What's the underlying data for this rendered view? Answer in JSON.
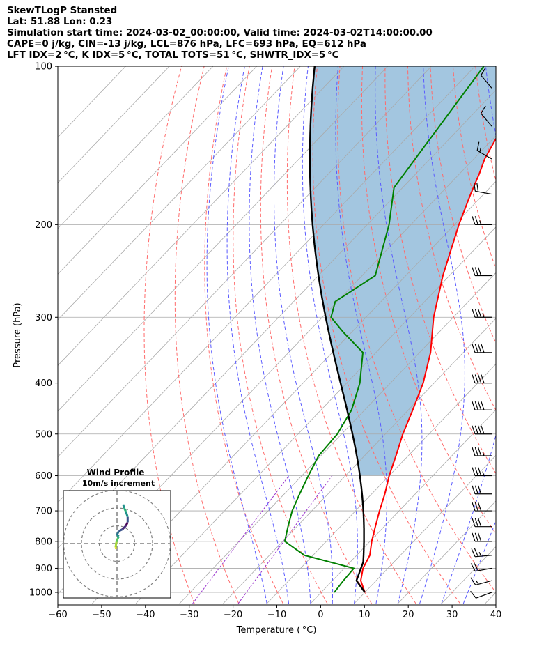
{
  "header": {
    "line1": "SkewTLogP Stansted",
    "line2": "Lat: 51.88   Lon: 0.23",
    "line3": "Simulation start time: 2024-03-02_00:00:00, Valid time: 2024-03-02T14:00:00.00",
    "line4": "CAPE=0 j/kg, CIN=-13 j/kg, LCL=876 hPa, LFC=693 hPa, EQ=612 hPa",
    "line5": "LFT IDX=2 °C, K IDX=5 °C, TOTAL TOTS=51 °C, SHWTR_IDX=5 °C"
  },
  "chart_data": {
    "type": "skewt",
    "xlabel": "Temperature ( °C)",
    "ylabel": "Pressure (hPa)",
    "xlim": [
      -60,
      40
    ],
    "ylim_hpa": [
      1050,
      100
    ],
    "x_ticks": [
      "−60",
      "−50",
      "−40",
      "−30",
      "−20",
      "−10",
      "0",
      "10",
      "20",
      "30",
      "40"
    ],
    "p_ticks": [
      "1000",
      "900",
      "800",
      "700",
      "600",
      "500",
      "400",
      "300",
      "200",
      "100"
    ],
    "temperature": [
      [
        1000,
        10
      ],
      [
        950,
        6.5
      ],
      [
        900,
        4.3
      ],
      [
        850,
        3.0
      ],
      [
        800,
        0.4
      ],
      [
        750,
        -2.0
      ],
      [
        700,
        -4.5
      ],
      [
        650,
        -7.0
      ],
      [
        600,
        -10.0
      ],
      [
        550,
        -12.8
      ],
      [
        500,
        -16.0
      ],
      [
        450,
        -19.0
      ],
      [
        400,
        -22.5
      ],
      [
        350,
        -27.5
      ],
      [
        300,
        -34.5
      ],
      [
        250,
        -41.5
      ],
      [
        200,
        -49.0
      ],
      [
        175,
        -53.0
      ],
      [
        160,
        -55.5
      ],
      [
        150,
        -57.5
      ],
      [
        130,
        -60.5
      ],
      [
        120,
        -62.5
      ],
      [
        100,
        -66.5
      ]
    ],
    "dewpoint": [
      [
        1000,
        3.0
      ],
      [
        950,
        2.5
      ],
      [
        900,
        2.2
      ],
      [
        850,
        -12.0
      ],
      [
        800,
        -19.5
      ],
      [
        750,
        -22.0
      ],
      [
        700,
        -24.5
      ],
      [
        650,
        -26.5
      ],
      [
        600,
        -28.5
      ],
      [
        550,
        -30.5
      ],
      [
        500,
        -31.0
      ],
      [
        450,
        -33.0
      ],
      [
        400,
        -37.0
      ],
      [
        350,
        -43.0
      ],
      [
        320,
        -52.0
      ],
      [
        300,
        -58.0
      ],
      [
        280,
        -60.5
      ],
      [
        250,
        -57.0
      ],
      [
        200,
        -65.0
      ],
      [
        170,
        -72.0
      ],
      [
        100,
        -78.0
      ]
    ],
    "parcel_start": [
      [
        1000,
        10
      ],
      [
        950,
        5.5
      ],
      [
        876,
        3.0
      ]
    ],
    "parcel_moist_from": [
      876,
      3.0
    ],
    "dry_adiabats_theta": [
      -30,
      -20,
      -10,
      0,
      10,
      20,
      30,
      40,
      50,
      60,
      70,
      80,
      90,
      100,
      110
    ],
    "moist_adiabats_t0": [
      -10,
      -5,
      0,
      5,
      10,
      15,
      20,
      25,
      30,
      35
    ],
    "isotherm_step": 10,
    "cape_fill_color": "#a3c6e0",
    "temp_color": "#ff0000",
    "dew_color": "#008000",
    "parcel_color": "#000000",
    "isotherm_color": "#a9a9a9",
    "dry_adiabat_color": "#ff6b6b",
    "moist_adiabat_color": "#5b5bff",
    "mixing_line_color": "#9932cc",
    "wind_barbs": [
      {
        "p": 1000,
        "spd": 10,
        "dir": 250
      },
      {
        "p": 950,
        "spd": 15,
        "dir": 255
      },
      {
        "p": 900,
        "spd": 20,
        "dir": 260
      },
      {
        "p": 850,
        "spd": 25,
        "dir": 265
      },
      {
        "p": 800,
        "spd": 30,
        "dir": 270
      },
      {
        "p": 750,
        "spd": 30,
        "dir": 270
      },
      {
        "p": 700,
        "spd": 30,
        "dir": 270
      },
      {
        "p": 650,
        "spd": 30,
        "dir": 270
      },
      {
        "p": 600,
        "spd": 35,
        "dir": 270
      },
      {
        "p": 550,
        "spd": 35,
        "dir": 270
      },
      {
        "p": 500,
        "spd": 40,
        "dir": 270
      },
      {
        "p": 450,
        "spd": 40,
        "dir": 270
      },
      {
        "p": 400,
        "spd": 40,
        "dir": 270
      },
      {
        "p": 350,
        "spd": 40,
        "dir": 270
      },
      {
        "p": 300,
        "spd": 35,
        "dir": 270
      },
      {
        "p": 250,
        "spd": 30,
        "dir": 270
      },
      {
        "p": 200,
        "spd": 25,
        "dir": 270
      },
      {
        "p": 175,
        "spd": 20,
        "dir": 280
      },
      {
        "p": 150,
        "spd": 15,
        "dir": 300
      },
      {
        "p": 130,
        "spd": 10,
        "dir": 320
      },
      {
        "p": 110,
        "spd": 10,
        "dir": 320
      }
    ],
    "hodograph": {
      "title": "Wind Profile",
      "subtitle": "10m/s increment",
      "rings": [
        10,
        20,
        30
      ],
      "points": [
        [
          -0.5,
          -3
        ],
        [
          -0.8,
          -2
        ],
        [
          -0.3,
          1
        ],
        [
          0.5,
          3
        ],
        [
          1,
          4
        ],
        [
          0,
          5
        ],
        [
          1,
          7
        ],
        [
          3,
          8
        ],
        [
          5,
          10
        ],
        [
          6,
          12
        ],
        [
          6,
          15
        ],
        [
          5,
          18
        ],
        [
          4,
          20
        ],
        [
          3.5,
          22
        ]
      ]
    }
  }
}
